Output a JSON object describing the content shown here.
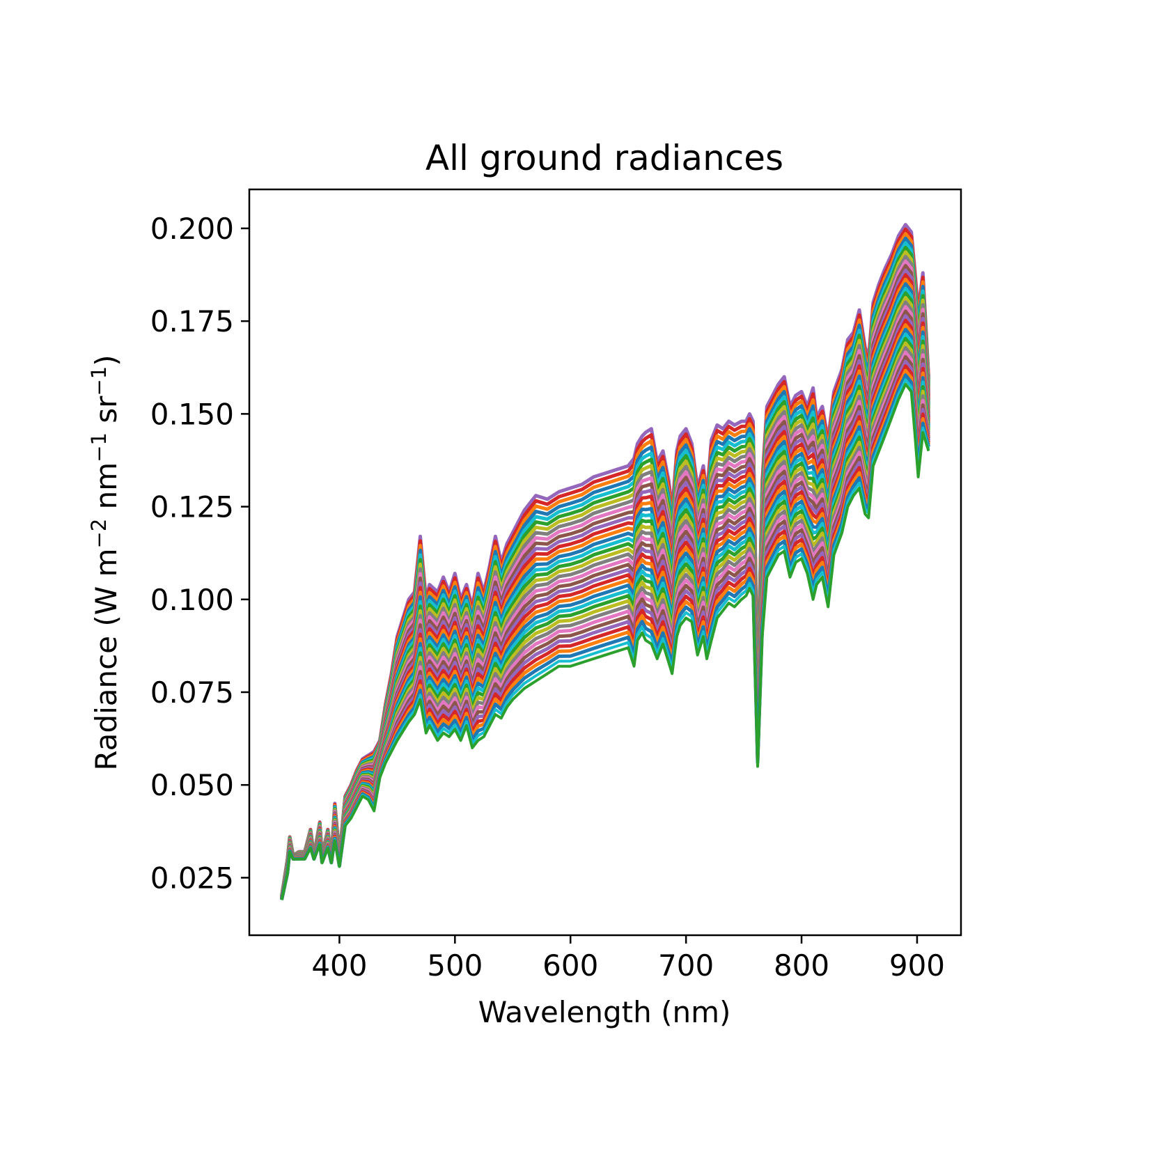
{
  "chart_data": {
    "type": "line",
    "title": "All ground radiances",
    "xlabel": "Wavelength (nm)",
    "ylabel": {
      "base": "Radiance (W m",
      "exp1": "−2",
      "mid": " nm",
      "exp2": "−1",
      "mid2": " sr",
      "exp3": "−1",
      "end": ")"
    },
    "xlim": [
      322,
      938
    ],
    "ylim": [
      0.0095,
      0.2105
    ],
    "xticks": [
      400,
      500,
      600,
      700,
      800,
      900
    ],
    "xtick_labels": [
      "400",
      "500",
      "600",
      "700",
      "800",
      "900"
    ],
    "yticks": [
      0.025,
      0.05,
      0.075,
      0.1,
      0.125,
      0.15,
      0.175,
      0.2
    ],
    "ytick_labels": [
      "0.025",
      "0.050",
      "0.075",
      "0.100",
      "0.125",
      "0.150",
      "0.175",
      "0.200"
    ],
    "grid": false,
    "legend": "none",
    "series_count": 36,
    "series_colors": [
      "#2ca02c",
      "#17becf",
      "#1f77b4",
      "#ff7f0e",
      "#d62728",
      "#9467bd",
      "#8c564b",
      "#e377c2",
      "#7f7f7f",
      "#bcbd22"
    ],
    "x": [
      350,
      355,
      357,
      360,
      365,
      370,
      375,
      378,
      383,
      385,
      390,
      393,
      396,
      400,
      405,
      410,
      415,
      420,
      425,
      430,
      435,
      440,
      445,
      450,
      460,
      465,
      470,
      475,
      478,
      485,
      490,
      495,
      500,
      505,
      510,
      515,
      520,
      525,
      530,
      535,
      540,
      545,
      550,
      560,
      570,
      580,
      590,
      600,
      610,
      620,
      630,
      640,
      650,
      655,
      658,
      662,
      665,
      670,
      675,
      680,
      685,
      688,
      692,
      695,
      700,
      705,
      710,
      715,
      718,
      722,
      727,
      732,
      737,
      742,
      748,
      752,
      755,
      758,
      762,
      766,
      770,
      775,
      780,
      785,
      790,
      795,
      800,
      805,
      810,
      813,
      818,
      823,
      828,
      835,
      840,
      845,
      850,
      855,
      858,
      862,
      867,
      872,
      878,
      884,
      890,
      895,
      898,
      901,
      905,
      910
    ],
    "upper_envelope": [
      0.02,
      0.03,
      0.036,
      0.031,
      0.032,
      0.032,
      0.038,
      0.031,
      0.04,
      0.031,
      0.038,
      0.03,
      0.045,
      0.031,
      0.047,
      0.05,
      0.054,
      0.057,
      0.058,
      0.059,
      0.062,
      0.072,
      0.08,
      0.09,
      0.1,
      0.102,
      0.117,
      0.1,
      0.104,
      0.102,
      0.106,
      0.102,
      0.107,
      0.1,
      0.104,
      0.098,
      0.107,
      0.102,
      0.109,
      0.117,
      0.11,
      0.115,
      0.118,
      0.124,
      0.128,
      0.127,
      0.129,
      0.13,
      0.131,
      0.133,
      0.134,
      0.135,
      0.136,
      0.138,
      0.142,
      0.144,
      0.145,
      0.146,
      0.137,
      0.14,
      0.132,
      0.124,
      0.14,
      0.144,
      0.146,
      0.142,
      0.13,
      0.136,
      0.128,
      0.143,
      0.147,
      0.146,
      0.148,
      0.147,
      0.148,
      0.148,
      0.15,
      0.148,
      0.075,
      0.132,
      0.152,
      0.155,
      0.158,
      0.16,
      0.152,
      0.155,
      0.156,
      0.152,
      0.157,
      0.149,
      0.152,
      0.143,
      0.156,
      0.162,
      0.17,
      0.172,
      0.178,
      0.168,
      0.165,
      0.18,
      0.185,
      0.189,
      0.193,
      0.198,
      0.201,
      0.199,
      0.189,
      0.178,
      0.188,
      0.16
    ],
    "lower_envelope": [
      0.019,
      0.026,
      0.032,
      0.03,
      0.03,
      0.03,
      0.033,
      0.03,
      0.034,
      0.029,
      0.033,
      0.029,
      0.035,
      0.028,
      0.039,
      0.041,
      0.044,
      0.047,
      0.046,
      0.043,
      0.052,
      0.056,
      0.059,
      0.062,
      0.067,
      0.069,
      0.073,
      0.064,
      0.066,
      0.062,
      0.064,
      0.063,
      0.065,
      0.062,
      0.066,
      0.06,
      0.062,
      0.063,
      0.066,
      0.069,
      0.068,
      0.071,
      0.073,
      0.076,
      0.078,
      0.08,
      0.082,
      0.082,
      0.083,
      0.084,
      0.085,
      0.086,
      0.087,
      0.082,
      0.089,
      0.091,
      0.089,
      0.088,
      0.084,
      0.088,
      0.083,
      0.08,
      0.09,
      0.093,
      0.095,
      0.094,
      0.085,
      0.09,
      0.084,
      0.089,
      0.095,
      0.097,
      0.099,
      0.098,
      0.1,
      0.101,
      0.103,
      0.101,
      0.055,
      0.09,
      0.106,
      0.109,
      0.112,
      0.113,
      0.106,
      0.11,
      0.111,
      0.107,
      0.1,
      0.104,
      0.106,
      0.098,
      0.112,
      0.118,
      0.125,
      0.128,
      0.13,
      0.123,
      0.122,
      0.136,
      0.14,
      0.144,
      0.149,
      0.154,
      0.158,
      0.156,
      0.145,
      0.133,
      0.145,
      0.14
    ]
  }
}
